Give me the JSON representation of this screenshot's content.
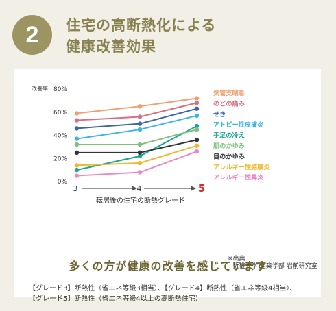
{
  "badge": "2",
  "heading": {
    "line1": "住宅の高断熱化による",
    "line2": "健康改善効果"
  },
  "notes": {
    "line1": "【グレード3】断熱性（省エネ等級3相当）、【グレード4】断熱性（省エネ等級4相当）、",
    "line2": "【グレード5】断熱性（省エネ等級4以上の高断熱住宅）"
  },
  "summary": "多くの方が健康の改善を感じています",
  "source": {
    "line1": "※出典",
    "line2": "近畿大学 建築学部 岩前研究室"
  },
  "chart_data": {
    "type": "line",
    "ylabel": "改善率",
    "xlabel": "転居後の住宅の断熱グレード",
    "ylim": [
      0,
      80
    ],
    "yticks": [
      "0%",
      "20%",
      "40%",
      "60%",
      "80%"
    ],
    "x": [
      "3",
      "4",
      "5"
    ],
    "grid": false,
    "legend_position": "right",
    "series": [
      {
        "name": "気管支喘息",
        "color": "#f0a070",
        "values": [
          59,
          65,
          72
        ]
      },
      {
        "name": "のどの痛み",
        "color": "#d97080",
        "values": [
          53,
          56,
          68
        ]
      },
      {
        "name": "せき",
        "color": "#3d65a8",
        "values": [
          46,
          50,
          63
        ]
      },
      {
        "name": "アトピー性皮膚炎",
        "color": "#3cb4e8",
        "values": [
          37,
          45,
          57
        ]
      },
      {
        "name": "手足の冷え",
        "color": "#1aa595",
        "values": [
          10,
          22,
          48
        ]
      },
      {
        "name": "肌のかゆみ",
        "color": "#7fc07a",
        "values": [
          32,
          32,
          45
        ]
      },
      {
        "name": "目のかゆみ",
        "color": "#333333",
        "values": [
          25,
          25,
          36
        ]
      },
      {
        "name": "アレルギー性結膜炎",
        "color": "#f1b62a",
        "values": [
          14,
          16,
          31
        ]
      },
      {
        "name": "アレルギー性鼻炎",
        "color": "#ef88c2",
        "values": [
          5,
          8,
          26
        ]
      }
    ]
  }
}
